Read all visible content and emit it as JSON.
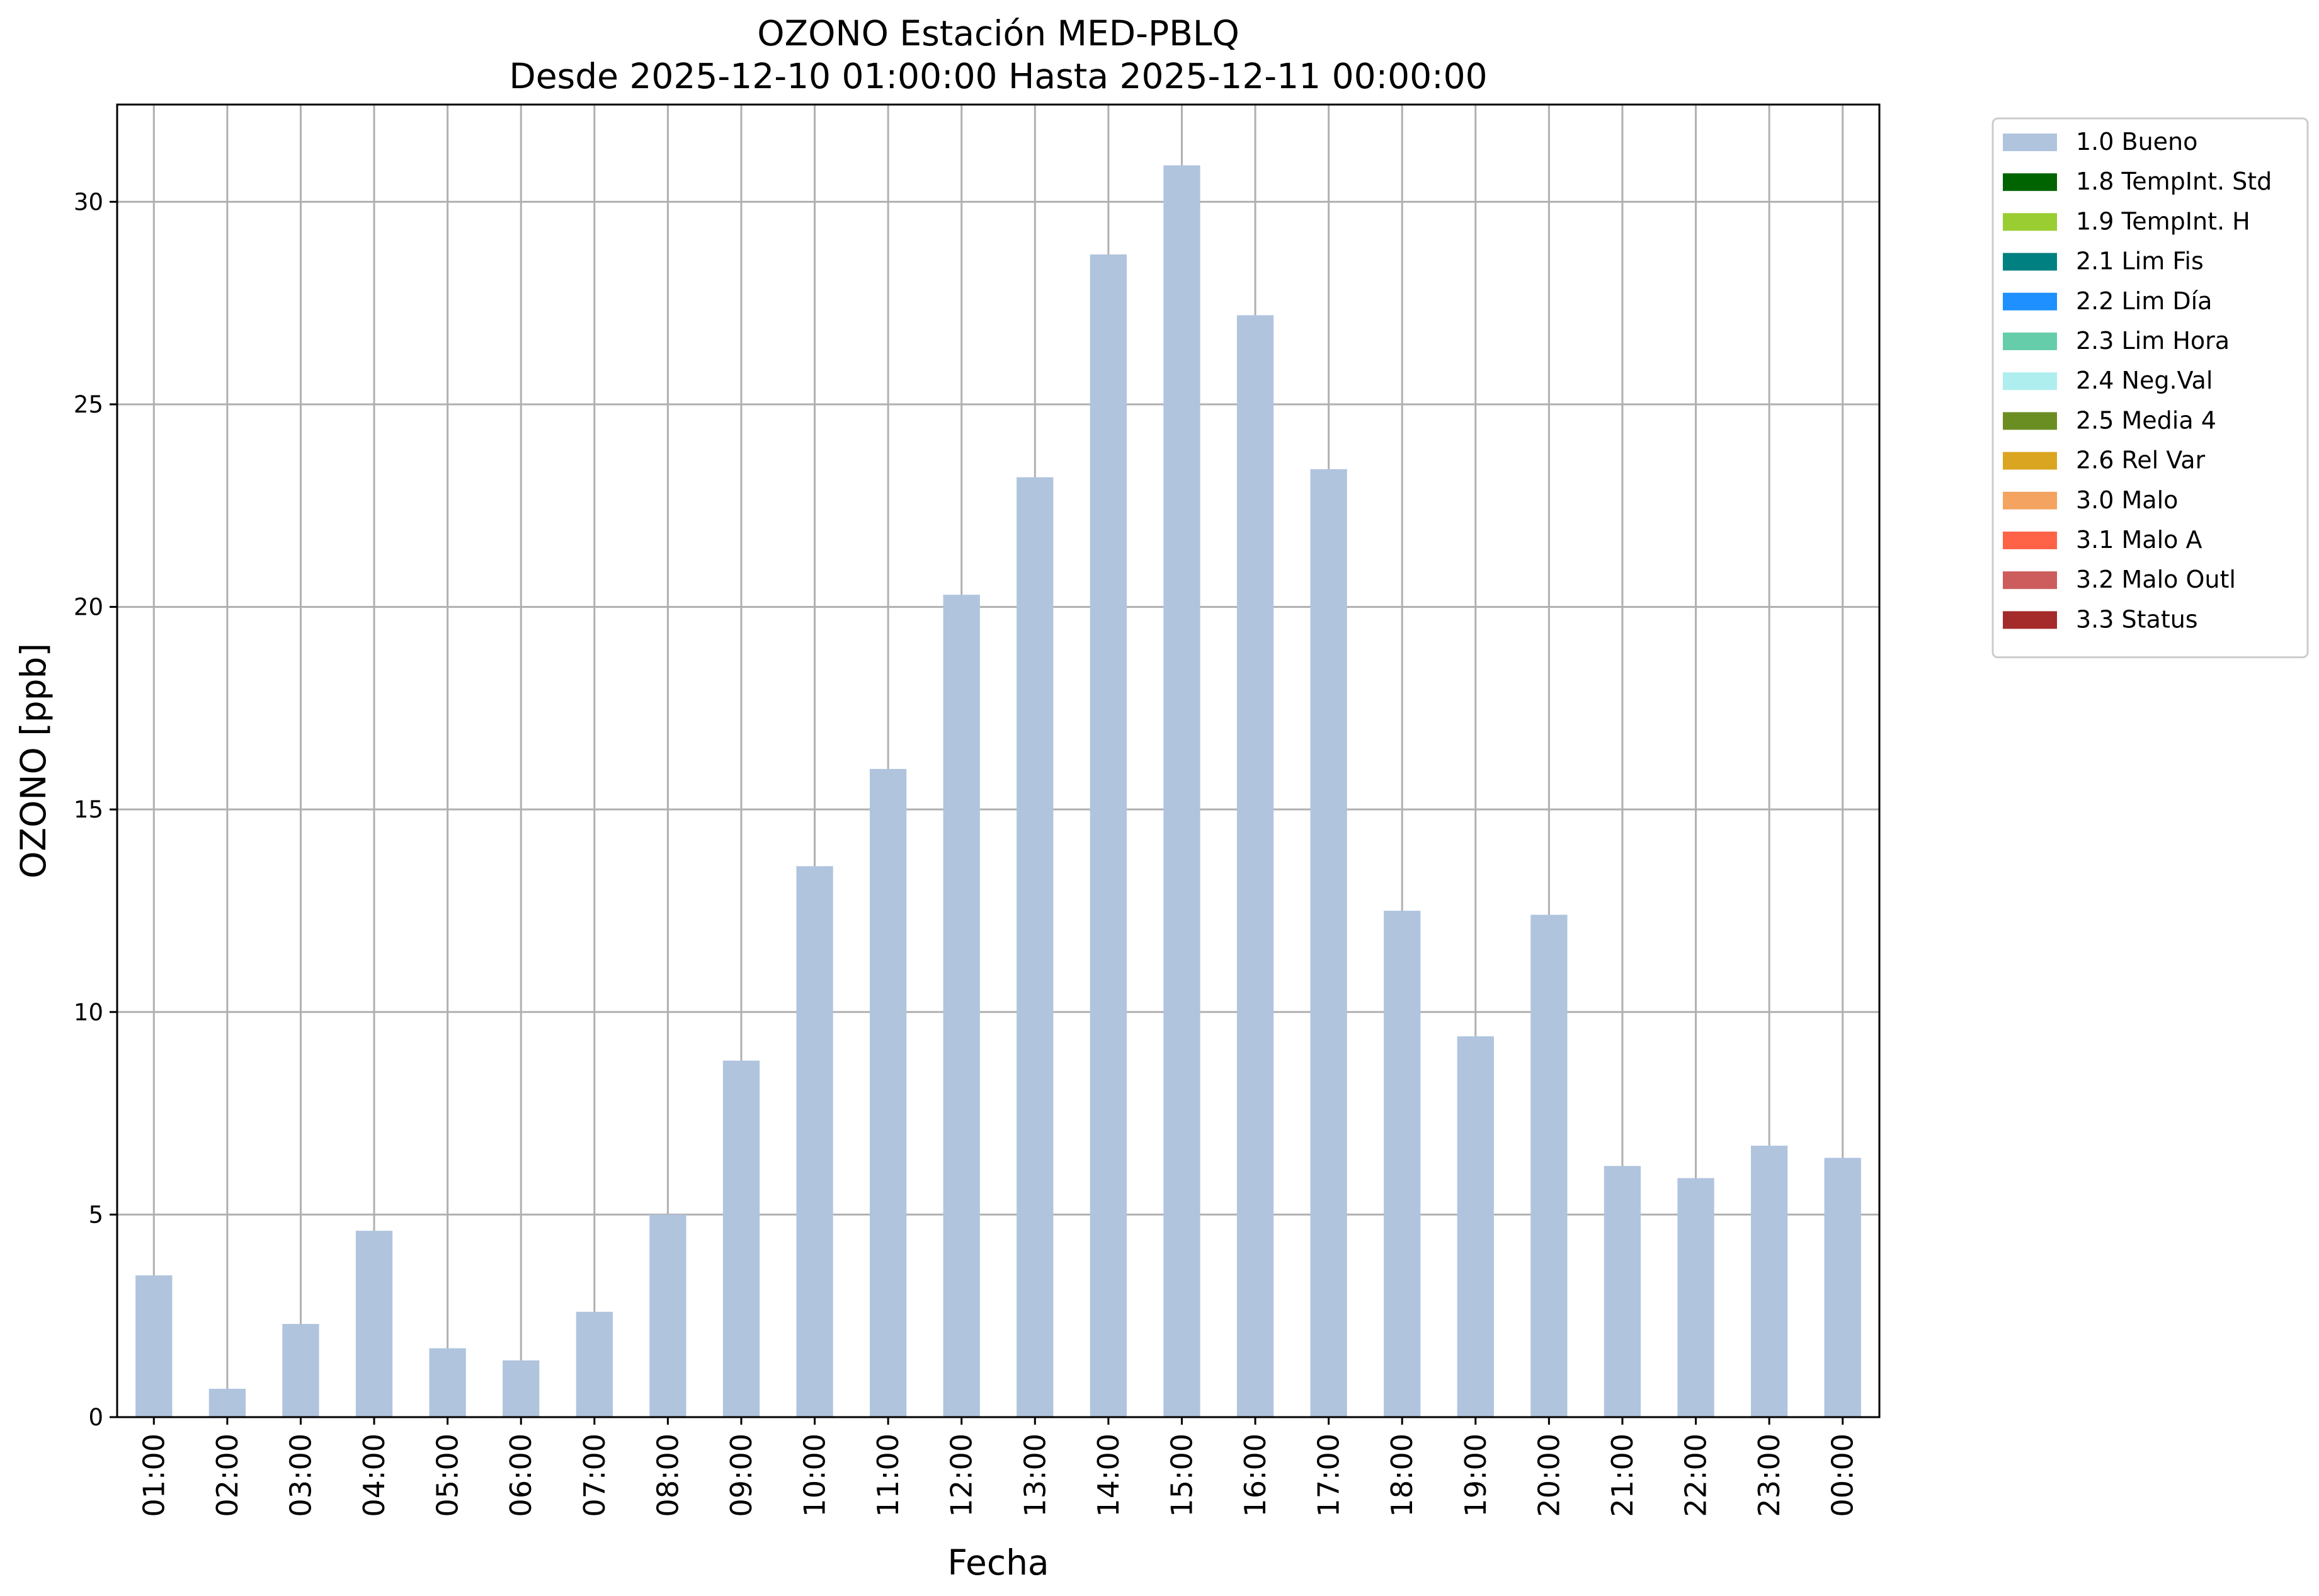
{
  "chart_data": {
    "type": "bar",
    "title": "OZONO Estación MED-PBLQ",
    "subtitle": "Desde 2025-12-10 01:00:00 Hasta 2025-12-11 00:00:00",
    "xlabel": "Fecha",
    "ylabel": "OZONO [ppb]",
    "ylim": [
      0,
      32.4
    ],
    "yticks": [
      0,
      5,
      10,
      15,
      20,
      25,
      30
    ],
    "grid": true,
    "legend_position": "outside-top-right",
    "categories": [
      "01:00",
      "02:00",
      "03:00",
      "04:00",
      "05:00",
      "06:00",
      "07:00",
      "08:00",
      "09:00",
      "10:00",
      "11:00",
      "12:00",
      "13:00",
      "14:00",
      "15:00",
      "16:00",
      "17:00",
      "18:00",
      "19:00",
      "20:00",
      "21:00",
      "22:00",
      "23:00",
      "00:00"
    ],
    "series": [
      {
        "name": "1.0 Bueno",
        "color": "#b0c4de",
        "values": [
          3.5,
          0.7,
          2.3,
          4.6,
          1.7,
          1.4,
          2.6,
          5.0,
          8.8,
          13.6,
          16.0,
          20.3,
          23.2,
          28.7,
          30.9,
          27.2,
          23.4,
          12.5,
          9.4,
          12.4,
          6.2,
          5.9,
          6.7,
          6.4
        ]
      }
    ],
    "legend": [
      {
        "label": "1.0 Bueno",
        "color": "#b0c4de"
      },
      {
        "label": "1.8 TempInt. Std",
        "color": "#006400"
      },
      {
        "label": "1.9 TempInt. H",
        "color": "#9acd32"
      },
      {
        "label": "2.1 Lim Fis",
        "color": "#008080"
      },
      {
        "label": "2.2 Lim Día",
        "color": "#1e90ff"
      },
      {
        "label": "2.3 Lim Hora",
        "color": "#66cdaa"
      },
      {
        "label": "2.4 Neg.Val",
        "color": "#afeeee"
      },
      {
        "label": "2.5 Media 4",
        "color": "#6b8e23"
      },
      {
        "label": "2.6 Rel Var",
        "color": "#daa520"
      },
      {
        "label": "3.0 Malo",
        "color": "#f4a460"
      },
      {
        "label": "3.1 Malo A",
        "color": "#ff6347"
      },
      {
        "label": "3.2 Malo Outl",
        "color": "#cd5c5c"
      },
      {
        "label": "3.3 Status",
        "color": "#a52a2a"
      }
    ]
  }
}
